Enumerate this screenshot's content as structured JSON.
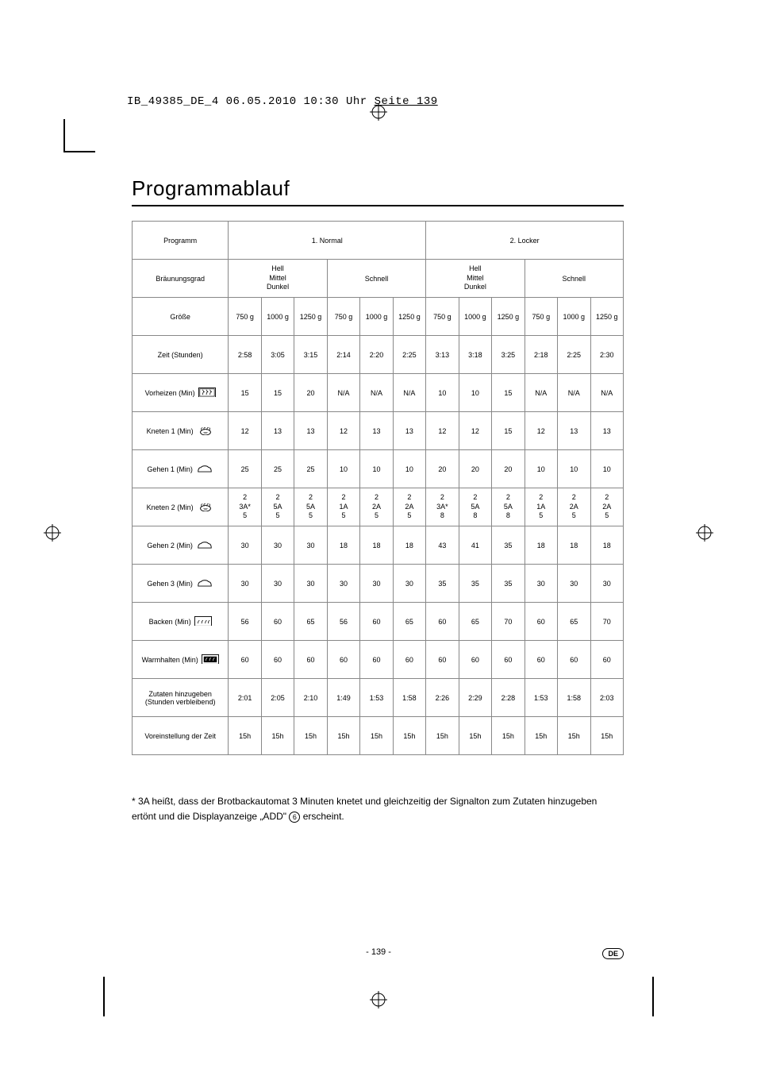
{
  "header": {
    "text_plain": "IB_49385_DE_4  06.05.2010  10:30 Uhr  ",
    "text_underline": "Seite 139"
  },
  "title": "Programmablauf",
  "table": {
    "program_label": "Programm",
    "programs": [
      "1. Normal",
      "2. Locker"
    ],
    "browning_label": "Bräunungsgrad",
    "browning_groups": [
      "Hell\nMittel\nDunkel",
      "Schnell",
      "Hell\nMittel\nDunkel",
      "Schnell"
    ],
    "size_label": "Größe",
    "sizes": [
      "750 g",
      "1000 g",
      "1250 g",
      "750 g",
      "1000 g",
      "1250 g",
      "750 g",
      "1000 g",
      "1250 g",
      "750 g",
      "1000 g",
      "1250 g"
    ],
    "rows": [
      {
        "label": "Zeit (Stunden)",
        "icon": null,
        "cells": [
          "2:58",
          "3:05",
          "3:15",
          "2:14",
          "2:20",
          "2:25",
          "3:13",
          "3:18",
          "3:25",
          "2:18",
          "2:25",
          "2:30"
        ]
      },
      {
        "label": "Vorheizen (Min)",
        "icon": "heat",
        "cells": [
          "15",
          "15",
          "20",
          "N/A",
          "N/A",
          "N/A",
          "10",
          "10",
          "15",
          "N/A",
          "N/A",
          "N/A"
        ]
      },
      {
        "label": "Kneten 1 (Min)",
        "icon": "knead",
        "cells": [
          "12",
          "13",
          "13",
          "12",
          "13",
          "13",
          "12",
          "12",
          "15",
          "12",
          "13",
          "13"
        ]
      },
      {
        "label": "Gehen 1 (Min)",
        "icon": "rise",
        "cells": [
          "25",
          "25",
          "25",
          "10",
          "10",
          "10",
          "20",
          "20",
          "20",
          "10",
          "10",
          "10"
        ]
      },
      {
        "label": "Kneten 2 (Min)",
        "icon": "knead",
        "cells": [
          "2\n3A*\n5",
          "2\n5A\n5",
          "2\n5A\n5",
          "2\n1A\n5",
          "2\n2A\n5",
          "2\n2A\n5",
          "2\n3A*\n8",
          "2\n5A\n8",
          "2\n5A\n8",
          "2\n1A\n5",
          "2\n2A\n5",
          "2\n2A\n5"
        ]
      },
      {
        "label": "Gehen 2 (Min)",
        "icon": "rise",
        "cells": [
          "30",
          "30",
          "30",
          "18",
          "18",
          "18",
          "43",
          "41",
          "35",
          "18",
          "18",
          "18"
        ]
      },
      {
        "label": "Gehen 3 (Min)",
        "icon": "rise",
        "cells": [
          "30",
          "30",
          "30",
          "30",
          "30",
          "30",
          "35",
          "35",
          "35",
          "30",
          "30",
          "30"
        ]
      },
      {
        "label": "Backen (Min)",
        "icon": "bake",
        "cells": [
          "56",
          "60",
          "65",
          "56",
          "60",
          "65",
          "60",
          "65",
          "70",
          "60",
          "65",
          "70"
        ]
      },
      {
        "label": "Warmhalten (Min)",
        "icon": "warm",
        "cells": [
          "60",
          "60",
          "60",
          "60",
          "60",
          "60",
          "60",
          "60",
          "60",
          "60",
          "60",
          "60"
        ]
      },
      {
        "label": "Zutaten hinzugeben\n(Stunden verbleibend)",
        "icon": null,
        "cells": [
          "2:01",
          "2:05",
          "2:10",
          "1:49",
          "1:53",
          "1:58",
          "2:26",
          "2:29",
          "2:28",
          "1:53",
          "1:58",
          "2:03"
        ]
      },
      {
        "label": "Voreinstellung der Zeit",
        "icon": null,
        "cells": [
          "15h",
          "15h",
          "15h",
          "15h",
          "15h",
          "15h",
          "15h",
          "15h",
          "15h",
          "15h",
          "15h",
          "15h"
        ]
      }
    ]
  },
  "footnote": {
    "before": "* 3A heißt, dass der Brotbackautomat 3 Minuten knetet und gleichzeitig der Signalton zum Zutaten hinzugeben ertönt und die Displayanzeige „ADD\" ",
    "circled": "6",
    "after": " erscheint."
  },
  "page_number": "- 139 -",
  "lang_badge": "DE",
  "icons": {
    "heat": "<svg viewBox='0 0 24 14'><rect x='0.5' y='0.5' width='23' height='13' fill='none' stroke='#000'/><rect x='2' y='2' width='20' height='10' fill='none' stroke='#000' stroke-width='0.7'/><path d='M6 10 Q6 6 8 6 Q6 4 6 3 M11 10 Q11 6 13 6 Q11 4 11 3 M16 10 Q16 6 18 6 Q16 4 16 3' fill='none' stroke='#000' stroke-width='0.8'/></svg>",
    "knead": "<svg viewBox='0 0 24 14'><ellipse cx='12' cy='9' rx='7' ry='4' fill='none' stroke='#000'/><path d='M7 7 Q5 3 8 3 M10 6 Q9 2 12 3 M14 6 Q14 2 16 3 M17 7 Q19 3 17 3' fill='none' stroke='#000' stroke-width='0.8'/><path d='M9 9 L15 9 M10 10.5 L14 10.5' stroke='#000' stroke-width='0.5'/></svg>",
    "rise": "<svg viewBox='0 0 24 14'><path d='M3 11 Q3 5 7 5 Q8 3 12 3 Q16 3 17 5 Q21 5 21 11 Z' fill='none' stroke='#000'/></svg>",
    "bake": "<svg viewBox='0 0 24 14'><rect x='0.5' y='0.5' width='23' height='13' fill='none' stroke='#000'/><path d='M5 10 Q5 6 7 6 M10 10 Q10 6 12 6 M15 10 Q15 6 17 6 M19 10 Q19 6 21 6' fill='none' stroke='#000' stroke-width='0.8'/></svg>",
    "warm": "<svg viewBox='0 0 24 14'><rect x='0.5' y='0.5' width='23' height='13' fill='none' stroke='#000'/><rect x='3' y='3' width='18' height='8' fill='#000'/><path d='M6 9 Q6 5 8 5 M11 9 Q11 5 13 5 M16 9 Q16 5 18 5' fill='none' stroke='#fff' stroke-width='0.8'/></svg>",
    "reg": "<svg viewBox='0 0 22 22'><circle cx='11' cy='11' r='8' fill='none' stroke='#000' stroke-width='1'/><line x1='11' y1='0' x2='11' y2='22' stroke='#000' stroke-width='1'/><line x1='0' y1='11' x2='22' y2='11' stroke='#000' stroke-width='1'/></svg>"
  }
}
